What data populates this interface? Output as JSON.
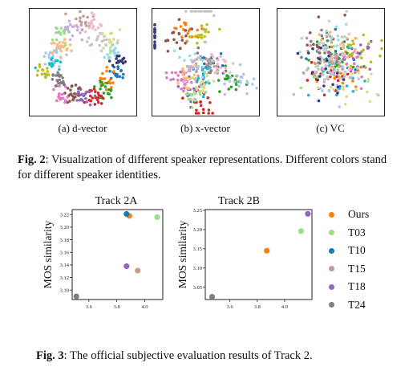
{
  "figure2": {
    "panels": [
      {
        "caption": "(a) d-vector"
      },
      {
        "caption": "(b) x-vector"
      },
      {
        "caption": "(c) VC"
      }
    ],
    "caption_label": "Fig. 2",
    "caption_text": ": Visualization of different speaker representations. Different colors stand for different speaker identities.",
    "palette": [
      "#1f77b4",
      "#ff7f0e",
      "#2ca02c",
      "#d62728",
      "#9467bd",
      "#8c564b",
      "#e377c2",
      "#7f7f7f",
      "#bcbd22",
      "#17becf",
      "#aec7e8",
      "#ffbb78",
      "#98df8a",
      "#c5b0d5",
      "#c49c94",
      "#f7b6d2",
      "#c7c7c7",
      "#dbdb8d",
      "#9edae5",
      "#393b79"
    ]
  },
  "figure3": {
    "caption_label": "Fig. 3",
    "caption_text": ": The official subjective evaluation results of Track 2.",
    "legend": [
      {
        "label": "Ours",
        "color": "#ff7f0e"
      },
      {
        "label": "T03",
        "color": "#98df8a"
      },
      {
        "label": "T10",
        "color": "#1f77b4"
      },
      {
        "label": "T15",
        "color": "#c49c94"
      },
      {
        "label": "T18",
        "color": "#9467bd"
      },
      {
        "label": "T24",
        "color": "#7f7f7f"
      }
    ]
  },
  "chart_data": [
    {
      "type": "scatter",
      "title": "Track 2A",
      "xlabel": "MOS quality",
      "ylabel": "MOS similarity",
      "xlim": [
        3.48,
        4.13
      ],
      "ylim": [
        3.085,
        3.228
      ],
      "xticks": [
        "3.6",
        "3.8",
        "4.0"
      ],
      "yticks": [
        "3.10",
        "3.12",
        "3.14",
        "3.16",
        "3.18",
        "3.20",
        "3.22"
      ],
      "series": [
        {
          "name": "Ours",
          "color": "#ff7f0e",
          "x": [
            3.89
          ],
          "y": [
            3.218
          ]
        },
        {
          "name": "T03",
          "color": "#98df8a",
          "x": [
            4.09
          ],
          "y": [
            3.216
          ]
        },
        {
          "name": "T10",
          "color": "#1f77b4",
          "x": [
            3.87
          ],
          "y": [
            3.221
          ]
        },
        {
          "name": "T15",
          "color": "#c49c94",
          "x": [
            3.95
          ],
          "y": [
            3.131
          ]
        },
        {
          "name": "T18",
          "color": "#9467bd",
          "x": [
            3.87
          ],
          "y": [
            3.138
          ]
        },
        {
          "name": "T24",
          "color": "#7f7f7f",
          "x": [
            3.51
          ],
          "y": [
            3.09
          ]
        }
      ]
    },
    {
      "type": "scatter",
      "title": "Track 2B",
      "xlabel": "MOS quality",
      "ylabel": "MOS similarity",
      "xlim": [
        3.42,
        4.2
      ],
      "ylim": [
        3.018,
        3.252
      ],
      "xticks": [
        "3.6",
        "3.8",
        "4.0"
      ],
      "yticks": [
        "3.05",
        "3.10",
        "3.15",
        "3.20",
        "3.25"
      ],
      "series": [
        {
          "name": "Ours",
          "color": "#ff7f0e",
          "x": [
            3.87
          ],
          "y": [
            3.145
          ]
        },
        {
          "name": "T03",
          "color": "#98df8a",
          "x": [
            4.12
          ],
          "y": [
            3.196
          ]
        },
        {
          "name": "T18",
          "color": "#9467bd",
          "x": [
            4.17
          ],
          "y": [
            3.241
          ]
        },
        {
          "name": "T24",
          "color": "#7f7f7f",
          "x": [
            3.47
          ],
          "y": [
            3.025
          ]
        }
      ]
    }
  ]
}
